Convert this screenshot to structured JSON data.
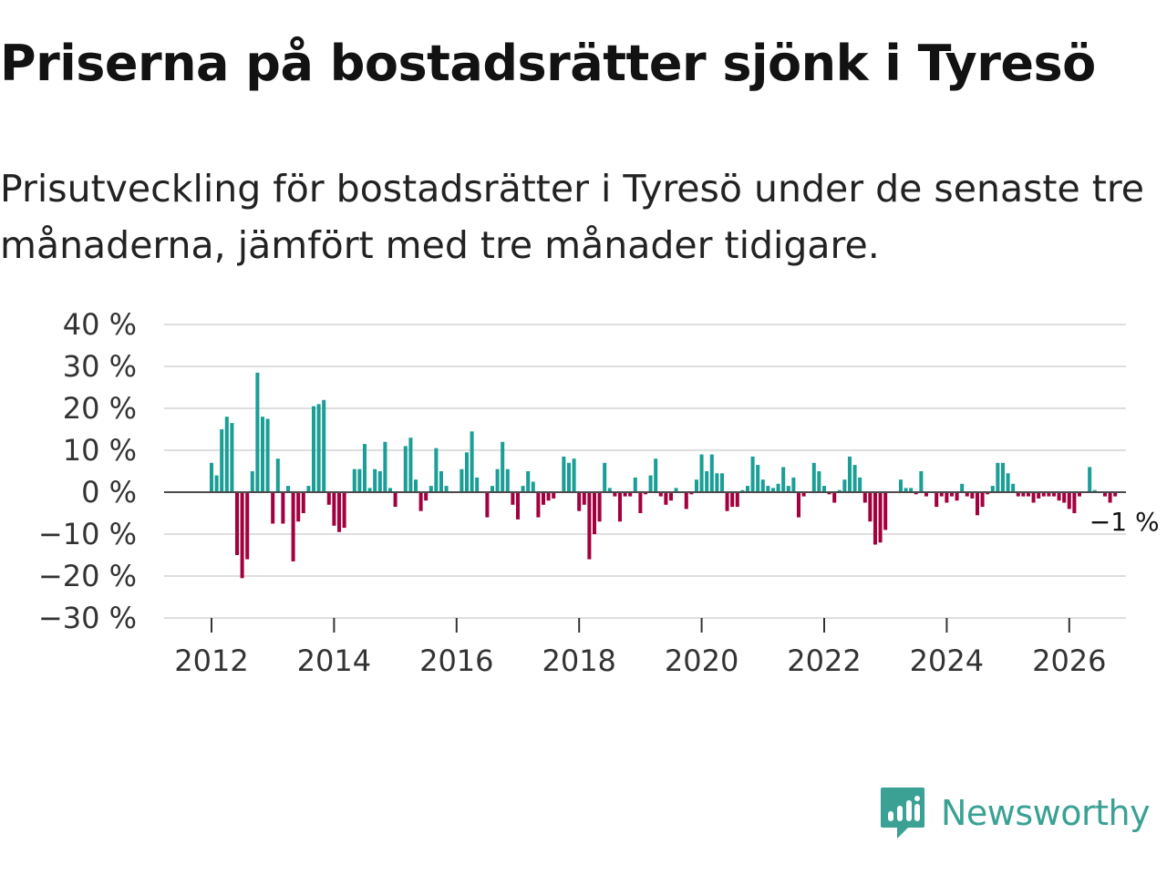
{
  "title": "Priserna på bostadsrätter sjönk i Tyresö",
  "subtitle": "Prisutveckling för bostadsrätter i Tyresö under de senaste tre månaderna, jämfört med tre månader tidigare.",
  "logo": {
    "name": "Newsworthy",
    "icon": "newsworthy-logo-icon"
  },
  "colors": {
    "positive": "#1a9e96",
    "negative": "#a3003f",
    "grid": "#dedede",
    "zero": "#4a4a4a"
  },
  "chart_data": {
    "type": "bar",
    "x_start": 2012.0,
    "x_step": 0.08333,
    "y_unit": " %",
    "ylim": [
      -30,
      40
    ],
    "yticks": [
      40,
      30,
      20,
      10,
      0,
      -10,
      -20,
      -30
    ],
    "ytick_labels": [
      "40 %",
      "30 %",
      "20 %",
      "10 %",
      "0 %",
      "−10 %",
      "−20 %",
      "−30 %"
    ],
    "xticks": [
      2012,
      2014,
      2016,
      2018,
      2020,
      2022,
      2024,
      2026
    ],
    "xtick_labels": [
      "2012",
      "2014",
      "2016",
      "2018",
      "2020",
      "2022",
      "2024",
      "2026"
    ],
    "last_label": "−1 %",
    "values": [
      7,
      4,
      15,
      18,
      16.5,
      -15,
      -20.5,
      -16,
      5,
      28.5,
      18,
      17.5,
      -7.5,
      8,
      -7.5,
      1.5,
      -16.5,
      -7,
      -5,
      1.5,
      20.5,
      21,
      22,
      -3,
      -8,
      -9.5,
      -8.5,
      0,
      5.5,
      5.5,
      11.5,
      1,
      5.5,
      5,
      12,
      1,
      -3.5,
      0,
      11,
      13,
      3,
      -4.5,
      -2,
      1.5,
      10.5,
      5,
      1.5,
      0,
      0,
      5.5,
      9.5,
      14.5,
      3.5,
      0,
      -6,
      1.5,
      5.5,
      12,
      5.5,
      -3,
      -6.5,
      1.5,
      5,
      2.5,
      -6,
      -3,
      -2,
      -1.5,
      0,
      8.5,
      7,
      8,
      -4.5,
      -3,
      -16,
      -10,
      -7,
      7,
      1,
      -1,
      -7,
      -1,
      -1,
      3.5,
      -5,
      -0.5,
      4,
      8,
      -1,
      -3,
      -2,
      1,
      0,
      -4,
      -0.5,
      3,
      9,
      5,
      9,
      4.5,
      4.5,
      -4.5,
      -3.5,
      -3.5,
      0.5,
      1.5,
      8.5,
      6.5,
      3,
      1.5,
      1,
      2,
      6,
      1.5,
      3.5,
      -6,
      -1,
      0,
      7,
      5,
      1.5,
      -0.5,
      -2.5,
      0.5,
      3,
      8.5,
      6.5,
      3.5,
      -2.5,
      -7,
      -12.5,
      -12,
      -9,
      0,
      0,
      3,
      1,
      1,
      -0.5,
      5,
      -1,
      0,
      -3.5,
      -1,
      -2.5,
      -1,
      -2,
      2,
      -1,
      -1.5,
      -5.5,
      -3.5,
      -0.5,
      1.5,
      7,
      7,
      4.5,
      2,
      -1,
      -1,
      -1,
      -2.5,
      -1.5,
      -1,
      -1,
      -1,
      -2,
      -2.5,
      -4,
      -5,
      -1,
      0,
      6,
      0.5,
      0,
      -1,
      -2.5,
      -1
    ]
  }
}
